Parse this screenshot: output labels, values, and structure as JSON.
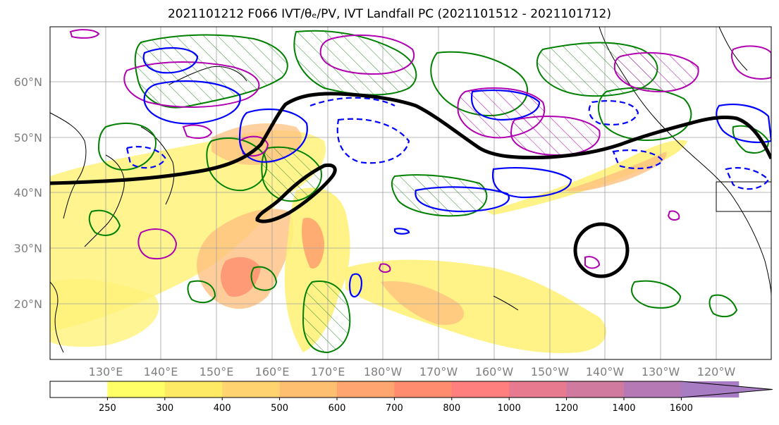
{
  "title": "2021101212 F066 IVT/θₑ/PV, IVT Landfall PC (2021101512 - 2021101712)",
  "map": {
    "lat_labels": [
      "60°N",
      "50°N",
      "40°N",
      "30°N",
      "20°N"
    ],
    "lat_values": [
      60,
      50,
      40,
      30,
      20
    ],
    "lon_labels": [
      "130°E",
      "140°E",
      "150°E",
      "160°E",
      "170°E",
      "180°W",
      "170°W",
      "160°W",
      "150°W",
      "140°W",
      "130°W",
      "120°W"
    ],
    "lon_values": [
      130,
      140,
      150,
      160,
      170,
      180,
      190,
      200,
      210,
      220,
      230,
      240
    ],
    "extent": {
      "lon_min": 120,
      "lon_max": 250,
      "lat_min": 10,
      "lat_max": 70
    },
    "grid": true,
    "colors": {
      "land_outline": "#000000",
      "landfall_contour": "#000000",
      "theta_e_contour": "#0000ff",
      "pv_contour": "#008000",
      "extra_contour": "#b000b0",
      "graticule": "#a0a0a0",
      "label_gray": "#7f7f7f"
    }
  },
  "colorbar": {
    "ticks": [
      "250",
      "300",
      "400",
      "500",
      "600",
      "700",
      "800",
      "1000",
      "1200",
      "1400",
      "1600"
    ],
    "colors": [
      "#ffffff",
      "#ffff66",
      "#ffea66",
      "#ffd470",
      "#ffbf70",
      "#ffa570",
      "#ff8c6e",
      "#ff7f7f",
      "#e87a90",
      "#d07aa0",
      "#b57ab5",
      "#a77cc3"
    ],
    "extend": "max"
  }
}
